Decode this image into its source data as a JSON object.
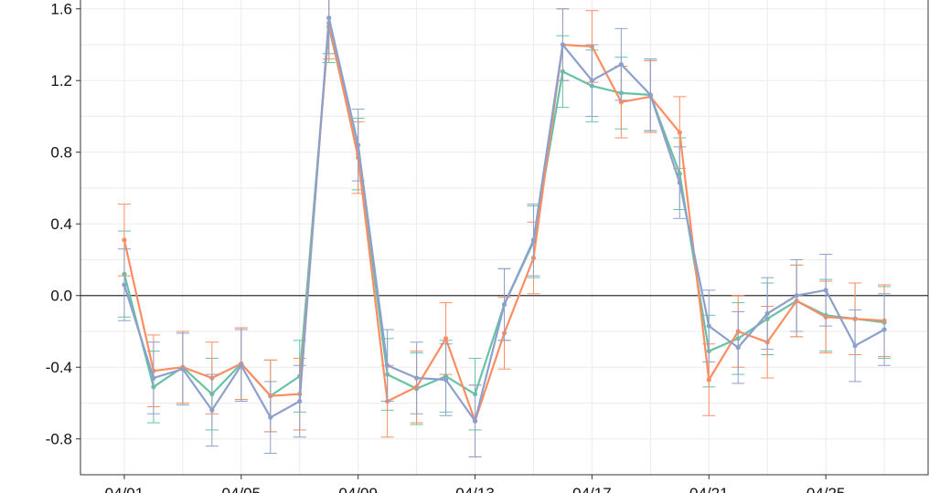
{
  "chart_data": {
    "type": "line",
    "title": "",
    "xlabel": "",
    "ylabel": "",
    "ylim": [
      -1.0,
      1.68
    ],
    "grid": true,
    "legend": "none",
    "zero_line": true,
    "y_ticks": [
      -0.8,
      -0.4,
      0.0,
      0.4,
      0.8,
      1.2,
      1.6
    ],
    "y_tick_labels": [
      "-0.8",
      "-0.4",
      "0.0",
      "0.4",
      "0.8",
      "1.2",
      "1.6"
    ],
    "x_ticks": [
      1,
      5,
      9,
      13,
      17,
      21,
      25
    ],
    "x_tick_labels": [
      "04/01",
      "04/05",
      "04/09",
      "04/13",
      "04/17",
      "04/21",
      "04/25"
    ],
    "x_range": [
      -0.5,
      28.5
    ],
    "x": [
      1,
      2,
      3,
      4,
      5,
      6,
      7,
      8,
      9,
      10,
      11,
      12,
      13,
      14,
      15,
      16,
      17,
      18,
      19,
      20,
      21,
      22,
      23,
      24,
      25,
      26,
      27
    ],
    "series": [
      {
        "color": "#66c2a5",
        "values": [
          0.12,
          -0.51,
          -0.4,
          -0.55,
          -0.38,
          -0.56,
          -0.45,
          1.5,
          0.79,
          -0.44,
          -0.52,
          -0.45,
          -0.55,
          -0.05,
          0.3,
          1.25,
          1.17,
          1.13,
          1.12,
          0.68,
          -0.31,
          -0.24,
          -0.13,
          -0.03,
          -0.11,
          -0.13,
          -0.15
        ],
        "errors": [
          0.24,
          0.2,
          0.2,
          0.2,
          0.2,
          0.2,
          0.2,
          0.2,
          0.2,
          0.2,
          0.2,
          0.2,
          0.2,
          0.2,
          0.2,
          0.2,
          0.2,
          0.2,
          0.2,
          0.2,
          0.2,
          0.2,
          0.2,
          0.2,
          0.2,
          0.2,
          0.2
        ]
      },
      {
        "color": "#fc8d62",
        "values": [
          0.31,
          -0.42,
          -0.4,
          -0.46,
          -0.38,
          -0.56,
          -0.55,
          1.52,
          0.77,
          -0.59,
          -0.51,
          -0.24,
          -0.7,
          -0.21,
          0.21,
          1.4,
          1.39,
          1.08,
          1.11,
          0.91,
          -0.47,
          -0.2,
          -0.26,
          -0.03,
          -0.12,
          -0.13,
          -0.14
        ],
        "errors": [
          0.2,
          0.2,
          0.2,
          0.2,
          0.2,
          0.2,
          0.2,
          0.2,
          0.2,
          0.2,
          0.2,
          0.2,
          0.2,
          0.2,
          0.2,
          0.2,
          0.2,
          0.2,
          0.2,
          0.2,
          0.2,
          0.2,
          0.2,
          0.2,
          0.2,
          0.2,
          0.2
        ]
      },
      {
        "color": "#8da0cb",
        "values": [
          0.06,
          -0.46,
          -0.41,
          -0.64,
          -0.39,
          -0.68,
          -0.59,
          1.55,
          0.84,
          -0.39,
          -0.46,
          -0.47,
          -0.7,
          -0.05,
          0.31,
          1.4,
          1.2,
          1.29,
          1.12,
          0.63,
          -0.17,
          -0.29,
          -0.1,
          0.0,
          0.03,
          -0.28,
          -0.19
        ],
        "errors": [
          0.2,
          0.2,
          0.2,
          0.2,
          0.2,
          0.2,
          0.2,
          0.2,
          0.2,
          0.2,
          0.2,
          0.2,
          0.2,
          0.2,
          0.2,
          0.2,
          0.2,
          0.2,
          0.2,
          0.2,
          0.2,
          0.2,
          0.2,
          0.2,
          0.2,
          0.2,
          0.2
        ]
      }
    ]
  }
}
